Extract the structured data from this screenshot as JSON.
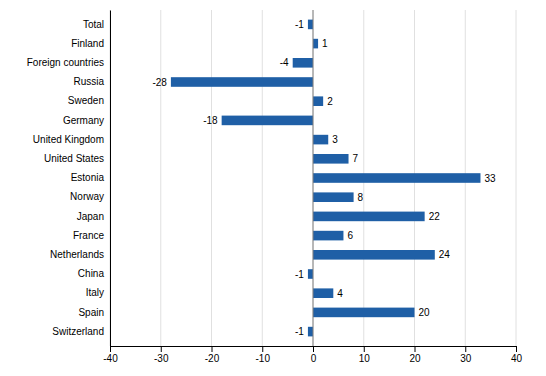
{
  "chart_data": {
    "type": "bar",
    "orientation": "horizontal",
    "categories": [
      "Switzerland",
      "Spain",
      "Italy",
      "China",
      "Netherlands",
      "France",
      "Japan",
      "Norway",
      "Estonia",
      "United States",
      "United Kingdom",
      "Germany",
      "Sweden",
      "Russia",
      "Foreign countries",
      "Finland",
      "Total"
    ],
    "values": [
      -1,
      20,
      4,
      -1,
      24,
      6,
      22,
      8,
      33,
      7,
      3,
      -18,
      2,
      -28,
      -4,
      1,
      -1
    ],
    "color": "#1f5fa6",
    "xlim": [
      -40,
      40
    ],
    "xticks": [
      -40,
      -30,
      -20,
      -10,
      0,
      10,
      20,
      30,
      40
    ],
    "grid": true,
    "data_labels": true
  }
}
